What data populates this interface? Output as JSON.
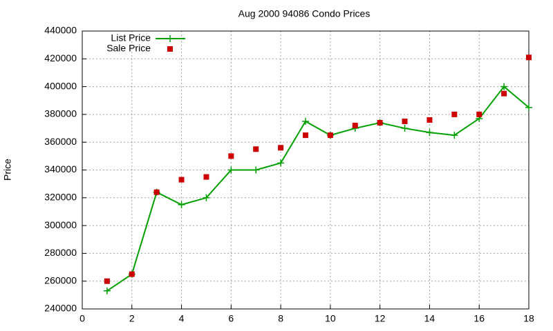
{
  "chart_data": {
    "type": "line",
    "title": "Aug 2000 94086 Condo Prices",
    "y_label": "Price",
    "x": [
      1,
      2,
      3,
      4,
      5,
      6,
      7,
      8,
      9,
      10,
      11,
      12,
      13,
      14,
      15,
      16,
      17,
      18
    ],
    "series": [
      {
        "name": "List Price",
        "color": "#00a000",
        "style": "linespoints",
        "values": [
          253000,
          265000,
          324000,
          315000,
          320000,
          340000,
          340000,
          345000,
          375000,
          365000,
          370000,
          374000,
          370000,
          367000,
          365000,
          377000,
          400000,
          385000
        ]
      },
      {
        "name": "Sale Price",
        "color": "#cc0000",
        "style": "points",
        "values": [
          260000,
          265000,
          324000,
          333000,
          335000,
          350000,
          355000,
          356000,
          365000,
          365000,
          372000,
          374000,
          375000,
          376000,
          380000,
          380000,
          395000,
          421000
        ]
      }
    ],
    "xlim": [
      0,
      18
    ],
    "xticks": [
      0,
      2,
      4,
      6,
      8,
      10,
      12,
      14,
      16,
      18
    ],
    "ylim": [
      240000,
      440000
    ],
    "yticks": [
      240000,
      260000,
      280000,
      300000,
      320000,
      340000,
      360000,
      380000,
      400000,
      420000,
      440000
    ],
    "grid": true,
    "legend": "top-left"
  }
}
